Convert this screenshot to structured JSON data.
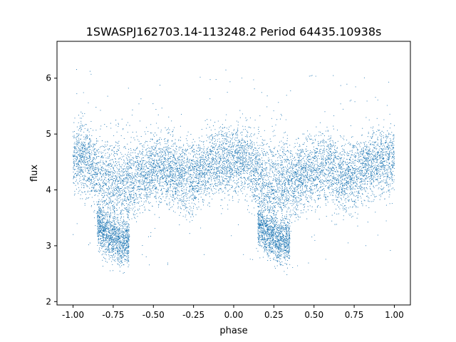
{
  "chart_data": {
    "type": "scatter",
    "title": "1SWASPJ162703.14-113248.2 Period 64435.10938s",
    "xlabel": "phase",
    "ylabel": "flux",
    "xlim": [
      -1.1,
      1.1
    ],
    "ylim": [
      1.94,
      6.66
    ],
    "x_ticks": [
      "-1.00",
      "-0.75",
      "-0.50",
      "-0.25",
      "0.00",
      "0.25",
      "0.50",
      "0.75",
      "1.00"
    ],
    "x_tick_values": [
      -1.0,
      -0.75,
      -0.5,
      -0.25,
      0.0,
      0.25,
      0.5,
      0.75,
      1.0
    ],
    "y_ticks": [
      "2",
      "3",
      "4",
      "5",
      "6"
    ],
    "y_tick_values": [
      2,
      3,
      4,
      5,
      6
    ],
    "grid": false,
    "marker_color": "#1f77b4",
    "series": [
      {
        "x": [
          -1.0,
          -0.95,
          -0.9,
          -0.85,
          -0.8,
          -0.75,
          -0.7,
          -0.65,
          -0.6,
          -0.55,
          -0.5,
          -0.45,
          -0.4,
          -0.35,
          -0.3,
          -0.25,
          -0.2,
          -0.15,
          -0.1,
          -0.05,
          0.0,
          0.05,
          0.1,
          0.15,
          0.2,
          0.25,
          0.3,
          0.35,
          0.4,
          0.45,
          0.5,
          0.55,
          0.6,
          0.65,
          0.7,
          0.75,
          0.8,
          0.85,
          0.9,
          0.95,
          1.0
        ],
        "y": [
          4.55,
          4.6,
          4.5,
          4.3,
          4.1,
          4.05,
          4.1,
          4.15,
          4.2,
          4.3,
          4.35,
          4.4,
          4.35,
          4.25,
          4.2,
          4.25,
          4.35,
          4.45,
          4.5,
          4.55,
          4.55,
          4.55,
          4.45,
          4.3,
          4.1,
          4.05,
          4.1,
          4.15,
          4.2,
          4.3,
          4.4,
          4.45,
          4.4,
          4.3,
          4.2,
          4.25,
          4.35,
          4.45,
          4.5,
          4.55,
          4.55
        ],
        "scatter": [
          0.3,
          0.3,
          0.3,
          0.35,
          0.4,
          0.45,
          0.4,
          0.35,
          0.3,
          0.3,
          0.3,
          0.3,
          0.3,
          0.3,
          0.3,
          0.3,
          0.3,
          0.3,
          0.3,
          0.3,
          0.3,
          0.3,
          0.3,
          0.35,
          0.4,
          0.45,
          0.4,
          0.35,
          0.3,
          0.3,
          0.3,
          0.3,
          0.3,
          0.3,
          0.3,
          0.3,
          0.3,
          0.3,
          0.3,
          0.3,
          0.3
        ]
      },
      {
        "x": [
          -0.85,
          -0.8,
          -0.75,
          -0.7,
          -0.65,
          0.15,
          0.2,
          0.25,
          0.3,
          0.35
        ],
        "y": [
          3.4,
          3.2,
          3.15,
          3.05,
          3.1,
          3.4,
          3.25,
          3.15,
          3.05,
          3.1
        ],
        "scatter": [
          0.2,
          0.2,
          0.2,
          0.2,
          0.2,
          0.2,
          0.2,
          0.2,
          0.2,
          0.2
        ]
      }
    ]
  }
}
